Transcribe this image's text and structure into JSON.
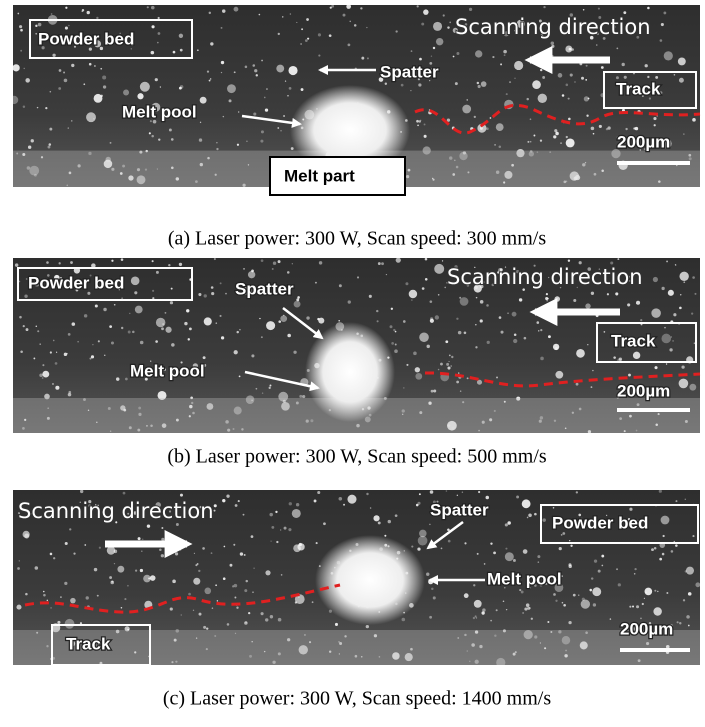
{
  "panels": [
    {
      "caption": "(a) Laser power: 300 W, Scan speed: 300 mm/s",
      "labels": {
        "powder_bed": "Powder bed",
        "scanning_direction": "Scanning direction",
        "spatter": "Spatter",
        "melt_pool": "Melt pool",
        "track": "Track",
        "melt_part": "Melt part",
        "scale_bar": "200µm"
      }
    },
    {
      "caption": "(b) Laser power: 300 W, Scan speed: 500 mm/s",
      "labels": {
        "powder_bed": "Powder bed",
        "scanning_direction": "Scanning direction",
        "spatter": "Spatter",
        "melt_pool": "Melt pool",
        "track": "Track",
        "scale_bar": "200µm"
      }
    },
    {
      "caption": "(c) Laser power: 300 W, Scan speed: 1400 mm/s",
      "labels": {
        "scanning_direction": "Scanning direction",
        "spatter": "Spatter",
        "melt_pool": "Melt pool",
        "powder_bed": "Powder bed",
        "track": "Track",
        "scale_bar": "200µm"
      }
    }
  ]
}
